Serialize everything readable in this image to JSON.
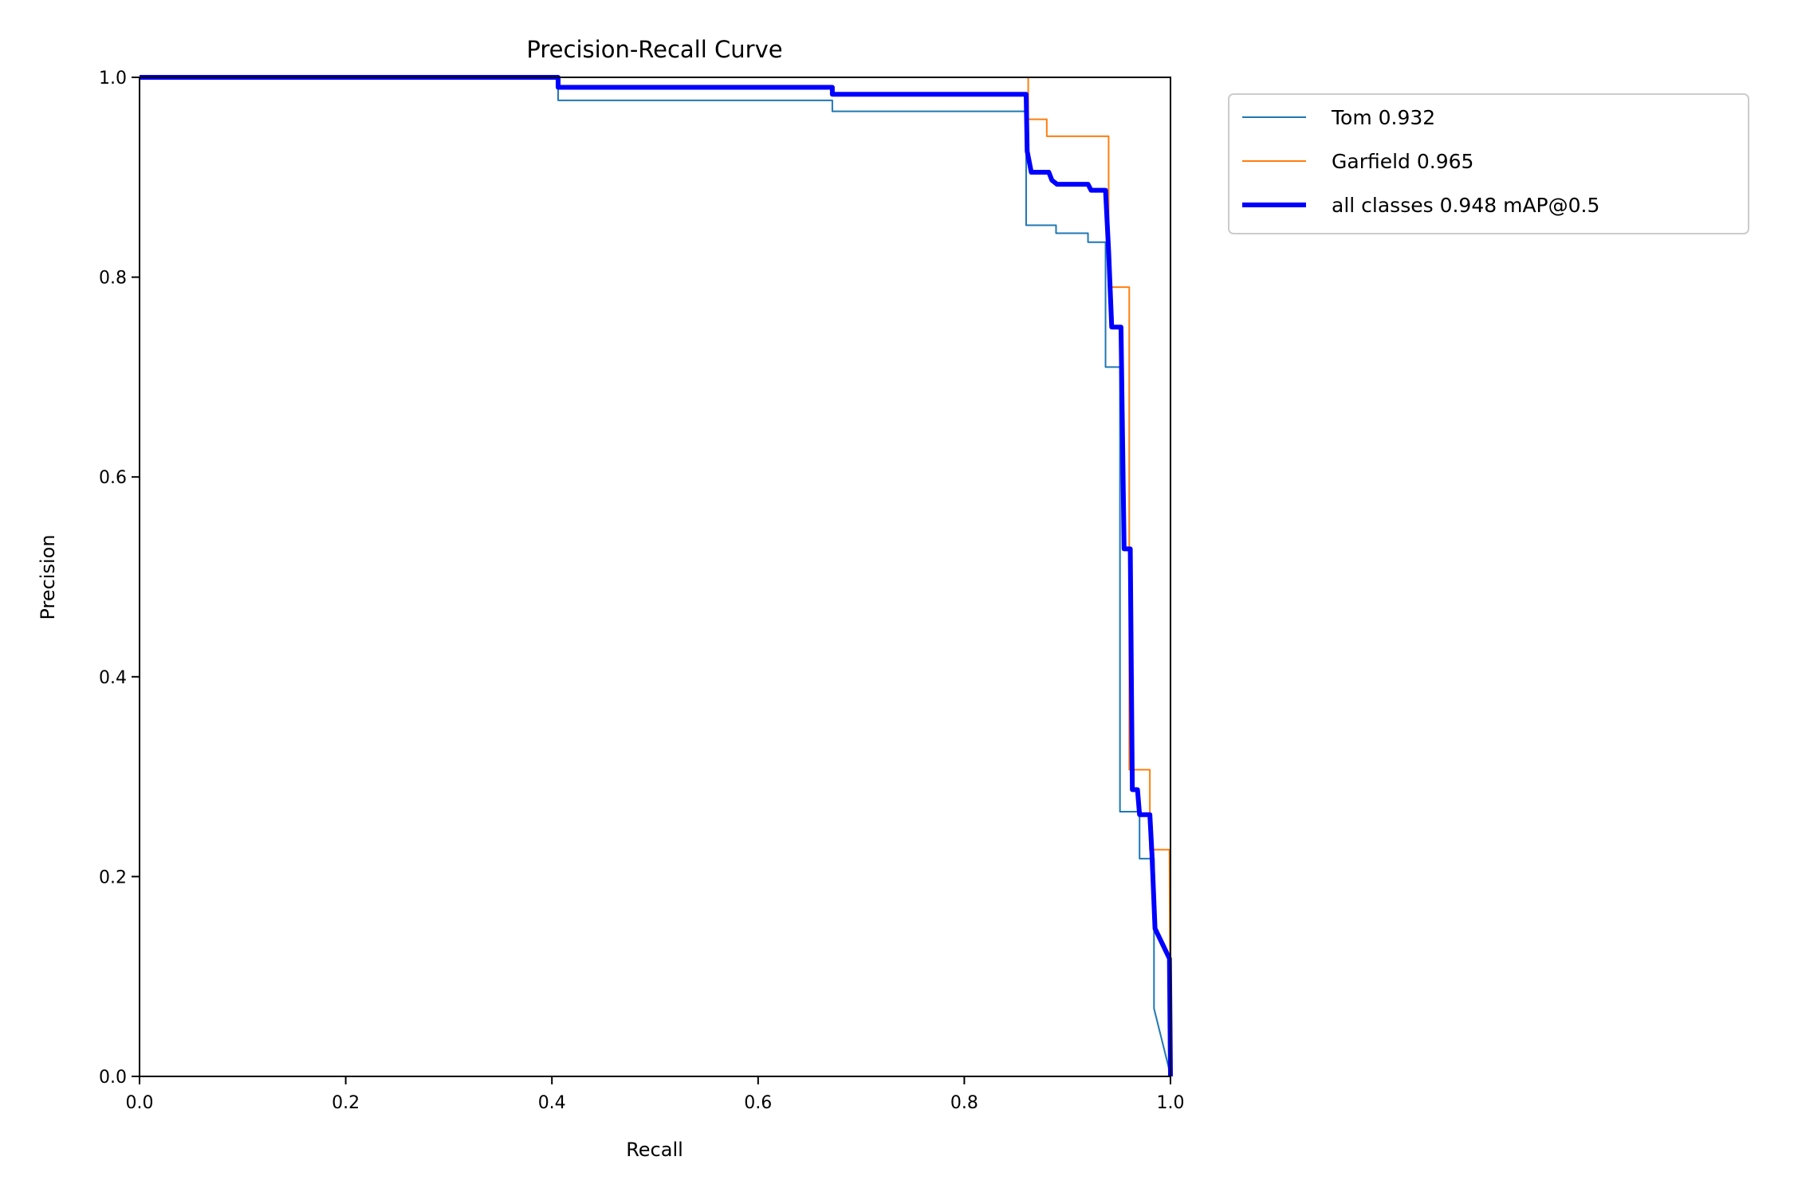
{
  "chart_data": {
    "type": "line",
    "title": "Precision-Recall Curve",
    "xlabel": "Recall",
    "ylabel": "Precision",
    "xlim": [
      0,
      1
    ],
    "ylim": [
      0,
      1
    ],
    "xticks": [
      "0.0",
      "0.2",
      "0.4",
      "0.6",
      "0.8",
      "1.0"
    ],
    "yticks": [
      "0.0",
      "0.2",
      "0.4",
      "0.6",
      "0.8",
      "1.0"
    ],
    "grid": false,
    "legend_position": "outside-top-right",
    "series": [
      {
        "name": "Tom 0.932",
        "color": "#1f77b4",
        "points": [
          [
            0,
            1
          ],
          [
            0.406,
            1
          ],
          [
            0.406,
            0.977
          ],
          [
            0.672,
            0.977
          ],
          [
            0.672,
            0.966
          ],
          [
            0.86,
            0.966
          ],
          [
            0.86,
            0.852
          ],
          [
            0.889,
            0.852
          ],
          [
            0.889,
            0.844
          ],
          [
            0.92,
            0.844
          ],
          [
            0.92,
            0.835
          ],
          [
            0.937,
            0.835
          ],
          [
            0.937,
            0.71
          ],
          [
            0.951,
            0.71
          ],
          [
            0.951,
            0.265
          ],
          [
            0.97,
            0.265
          ],
          [
            0.97,
            0.218
          ],
          [
            0.984,
            0.218
          ],
          [
            0.984,
            0.068
          ],
          [
            0.998,
            0.01
          ],
          [
            1,
            0
          ]
        ]
      },
      {
        "name": "Garfield 0.965",
        "color": "#ff7f0e",
        "points": [
          [
            0,
            1
          ],
          [
            0.862,
            1
          ],
          [
            0.862,
            0.958
          ],
          [
            0.88,
            0.958
          ],
          [
            0.88,
            0.941
          ],
          [
            0.94,
            0.941
          ],
          [
            0.94,
            0.79
          ],
          [
            0.96,
            0.79
          ],
          [
            0.96,
            0.307
          ],
          [
            0.98,
            0.307
          ],
          [
            0.98,
            0.227
          ],
          [
            0.999,
            0.227
          ],
          [
            1,
            0
          ]
        ]
      },
      {
        "name": "all classes 0.948 mAP@0.5",
        "color": "#0000ff",
        "points": [
          [
            0,
            1
          ],
          [
            0.406,
            1
          ],
          [
            0.406,
            0.99
          ],
          [
            0.672,
            0.99
          ],
          [
            0.672,
            0.983
          ],
          [
            0.86,
            0.983
          ],
          [
            0.861,
            0.926
          ],
          [
            0.865,
            0.905
          ],
          [
            0.882,
            0.905
          ],
          [
            0.885,
            0.897
          ],
          [
            0.89,
            0.893
          ],
          [
            0.92,
            0.893
          ],
          [
            0.923,
            0.887
          ],
          [
            0.937,
            0.887
          ],
          [
            0.94,
            0.826
          ],
          [
            0.943,
            0.75
          ],
          [
            0.952,
            0.75
          ],
          [
            0.955,
            0.528
          ],
          [
            0.961,
            0.528
          ],
          [
            0.963,
            0.287
          ],
          [
            0.968,
            0.287
          ],
          [
            0.97,
            0.262
          ],
          [
            0.98,
            0.262
          ],
          [
            0.982,
            0.223
          ],
          [
            0.985,
            0.148
          ],
          [
            0.999,
            0.118
          ],
          [
            1,
            0
          ]
        ]
      }
    ]
  }
}
